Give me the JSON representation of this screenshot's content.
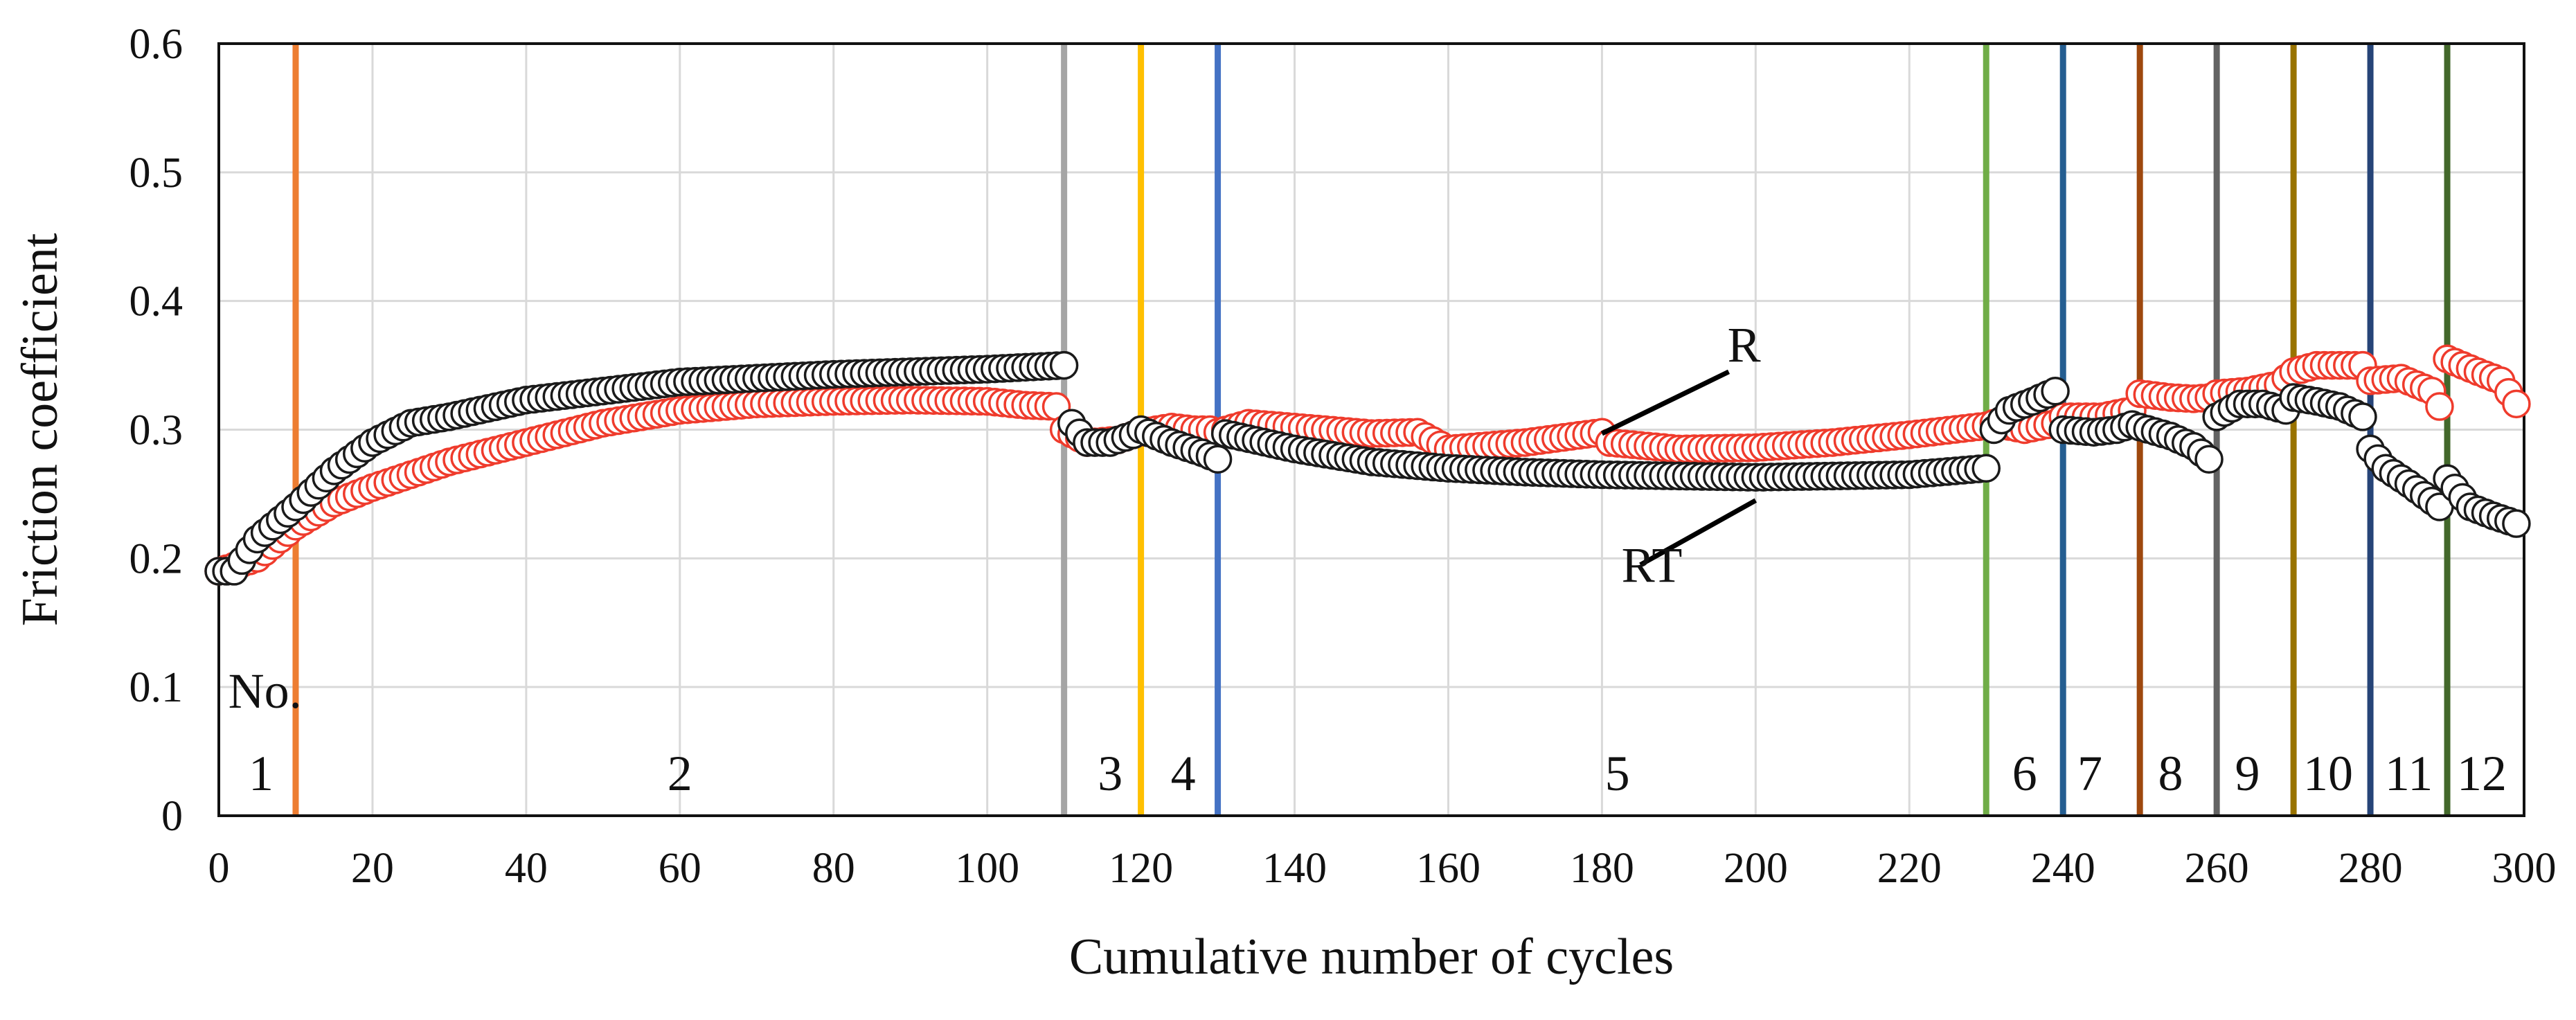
{
  "chart_data": {
    "type": "scatter",
    "xlabel": "Cumulative number of cycles",
    "ylabel": "Friction coefficient",
    "xlim": [
      0,
      300
    ],
    "ylim": [
      0,
      0.6
    ],
    "xticks": [
      0,
      20,
      40,
      60,
      80,
      100,
      120,
      140,
      160,
      180,
      200,
      220,
      240,
      260,
      280,
      300
    ],
    "xtick_labels": [
      "0",
      "20",
      "40",
      "60",
      "80",
      "100",
      "120",
      "140",
      "160",
      "180",
      "200",
      "220",
      "240",
      "260",
      "280",
      "300"
    ],
    "yticks": [
      0,
      0.1,
      0.2,
      0.3,
      0.4,
      0.5,
      0.6
    ],
    "ytick_labels": [
      "0",
      "0.1",
      "0.2",
      "0.3",
      "0.4",
      "0.5",
      "0.6"
    ],
    "grid": true,
    "series_colors": {
      "R": "#ef3b2c",
      "RT": "#1a1a1a"
    },
    "series_knots": {
      "RT": [
        [
          [
            0,
            0.19
          ],
          [
            2,
            0.19
          ],
          [
            5,
            0.215
          ],
          [
            10,
            0.24
          ],
          [
            15,
            0.268
          ],
          [
            20,
            0.29
          ],
          [
            25,
            0.305
          ],
          [
            30,
            0.31
          ],
          [
            40,
            0.323
          ],
          [
            50,
            0.33
          ],
          [
            60,
            0.337
          ],
          [
            70,
            0.34
          ],
          [
            80,
            0.343
          ],
          [
            90,
            0.345
          ],
          [
            100,
            0.347
          ],
          [
            110,
            0.35
          ]
        ],
        [
          [
            111,
            0.305
          ],
          [
            113,
            0.29
          ],
          [
            116,
            0.29
          ],
          [
            119,
            0.296
          ],
          [
            120,
            0.3
          ],
          [
            124,
            0.29
          ],
          [
            128,
            0.282
          ],
          [
            130,
            0.277
          ]
        ],
        [
          [
            131,
            0.297
          ],
          [
            140,
            0.285
          ],
          [
            150,
            0.275
          ],
          [
            160,
            0.27
          ],
          [
            170,
            0.267
          ],
          [
            180,
            0.265
          ],
          [
            200,
            0.263
          ],
          [
            220,
            0.265
          ],
          [
            230,
            0.27
          ]
        ],
        [
          [
            231,
            0.3
          ],
          [
            233,
            0.315
          ],
          [
            236,
            0.322
          ],
          [
            239,
            0.33
          ]
        ],
        [
          [
            240,
            0.3
          ],
          [
            244,
            0.298
          ],
          [
            247,
            0.3
          ],
          [
            249,
            0.304
          ]
        ],
        [
          [
            250,
            0.302
          ],
          [
            254,
            0.295
          ],
          [
            257,
            0.287
          ],
          [
            259,
            0.277
          ]
        ],
        [
          [
            260,
            0.31
          ],
          [
            263,
            0.32
          ],
          [
            266,
            0.32
          ],
          [
            269,
            0.315
          ]
        ],
        [
          [
            270,
            0.325
          ],
          [
            273,
            0.322
          ],
          [
            276,
            0.318
          ],
          [
            279,
            0.31
          ]
        ],
        [
          [
            280,
            0.285
          ],
          [
            282,
            0.27
          ],
          [
            285,
            0.258
          ],
          [
            289,
            0.24
          ]
        ],
        [
          [
            290,
            0.262
          ],
          [
            293,
            0.24
          ],
          [
            296,
            0.233
          ],
          [
            299,
            0.227
          ]
        ]
      ],
      "R": [
        [
          [
            0,
            0.19
          ],
          [
            5,
            0.2
          ],
          [
            10,
            0.225
          ],
          [
            15,
            0.243
          ],
          [
            20,
            0.255
          ],
          [
            25,
            0.265
          ],
          [
            30,
            0.275
          ],
          [
            40,
            0.29
          ],
          [
            50,
            0.305
          ],
          [
            60,
            0.315
          ],
          [
            70,
            0.32
          ],
          [
            80,
            0.322
          ],
          [
            90,
            0.323
          ],
          [
            100,
            0.322
          ],
          [
            105,
            0.319
          ],
          [
            109,
            0.318
          ]
        ],
        [
          [
            110,
            0.3
          ],
          [
            113,
            0.29
          ],
          [
            117,
            0.292
          ],
          [
            120,
            0.298
          ],
          [
            124,
            0.302
          ],
          [
            127,
            0.3
          ],
          [
            129,
            0.3
          ]
        ],
        [
          [
            130,
            0.298
          ],
          [
            134,
            0.305
          ],
          [
            140,
            0.302
          ],
          [
            150,
            0.297
          ],
          [
            156,
            0.298
          ],
          [
            160,
            0.285
          ],
          [
            170,
            0.29
          ],
          [
            180,
            0.298
          ],
          [
            181,
            0.29
          ],
          [
            190,
            0.285
          ],
          [
            200,
            0.286
          ],
          [
            210,
            0.29
          ],
          [
            220,
            0.296
          ],
          [
            230,
            0.303
          ]
        ],
        [
          [
            231,
            0.305
          ],
          [
            235,
            0.3
          ],
          [
            239,
            0.305
          ]
        ],
        [
          [
            240,
            0.31
          ],
          [
            245,
            0.31
          ],
          [
            249,
            0.315
          ]
        ],
        [
          [
            250,
            0.328
          ],
          [
            254,
            0.325
          ],
          [
            257,
            0.324
          ],
          [
            259,
            0.325
          ]
        ],
        [
          [
            260,
            0.328
          ],
          [
            264,
            0.33
          ],
          [
            268,
            0.335
          ],
          [
            269,
            0.34
          ]
        ],
        [
          [
            270,
            0.345
          ],
          [
            273,
            0.35
          ],
          [
            276,
            0.35
          ],
          [
            279,
            0.35
          ]
        ],
        [
          [
            280,
            0.338
          ],
          [
            284,
            0.34
          ],
          [
            288,
            0.33
          ],
          [
            289,
            0.318
          ]
        ],
        [
          [
            290,
            0.355
          ],
          [
            294,
            0.345
          ],
          [
            297,
            0.338
          ],
          [
            299,
            0.32
          ]
        ]
      ]
    },
    "boundaries": [
      {
        "x": 10,
        "color": "#ed7d31"
      },
      {
        "x": 110,
        "color": "#a5a5a5"
      },
      {
        "x": 120,
        "color": "#ffc000"
      },
      {
        "x": 130,
        "color": "#4472c4"
      },
      {
        "x": 230,
        "color": "#70ad47"
      },
      {
        "x": 240,
        "color": "#255e91"
      },
      {
        "x": 250,
        "color": "#9e480e"
      },
      {
        "x": 260,
        "color": "#636363"
      },
      {
        "x": 270,
        "color": "#997300"
      },
      {
        "x": 280,
        "color": "#264478"
      },
      {
        "x": 290,
        "color": "#43682b"
      }
    ],
    "segment_header": {
      "text": "No.",
      "x": 6,
      "y": 0.084
    },
    "segment_labels": [
      {
        "text": "1",
        "x": 5.5
      },
      {
        "text": "2",
        "x": 60
      },
      {
        "text": "3",
        "x": 116
      },
      {
        "text": "4",
        "x": 125.5
      },
      {
        "text": "5",
        "x": 182
      },
      {
        "text": "6",
        "x": 235
      },
      {
        "text": "7",
        "x": 243.5
      },
      {
        "text": "8",
        "x": 254
      },
      {
        "text": "9",
        "x": 264
      },
      {
        "text": "10",
        "x": 274.5
      },
      {
        "text": "11",
        "x": 285
      },
      {
        "text": "12",
        "x": 294.5
      }
    ],
    "segment_label_y": 0.02,
    "annotations": [
      {
        "text": "R",
        "tx": 198.5,
        "ty": 0.353,
        "x1": 180,
        "y1": 0.297,
        "x2": 196.5,
        "y2": 0.345
      },
      {
        "text": "RT",
        "tx": 186.5,
        "ty": 0.182,
        "x1": 200,
        "y1": 0.245,
        "x2": 185,
        "y2": 0.195
      }
    ]
  }
}
